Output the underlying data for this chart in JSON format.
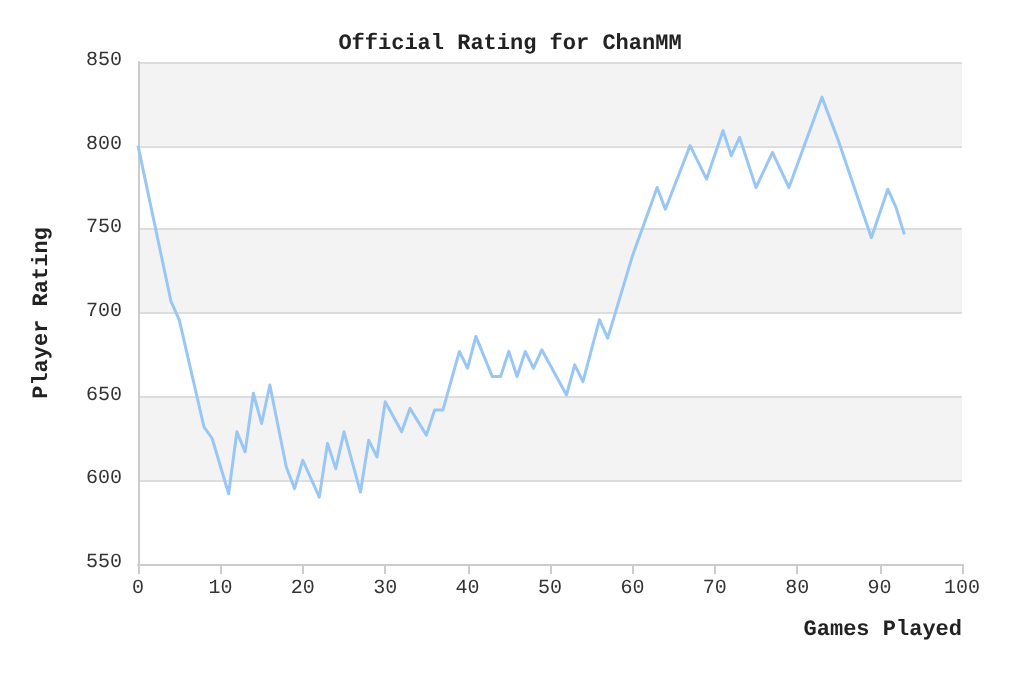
{
  "chart_data": {
    "type": "line",
    "title": "Official Rating for ChanMM",
    "xlabel": "Games Played",
    "ylabel": "Player Rating",
    "x": [
      0,
      4,
      5,
      8,
      9,
      11,
      12,
      13,
      14,
      15,
      16,
      18,
      19,
      20,
      22,
      23,
      24,
      25,
      27,
      28,
      29,
      30,
      32,
      33,
      35,
      36,
      37,
      39,
      40,
      41,
      43,
      44,
      45,
      46,
      47,
      48,
      49,
      52,
      53,
      54,
      56,
      57,
      60,
      63,
      64,
      67,
      69,
      71,
      72,
      73,
      75,
      77,
      79,
      83,
      85,
      89,
      91,
      92,
      93
    ],
    "series": [
      {
        "color": "#99c7f5",
        "values": [
          800,
          707,
          696,
          632,
          625,
          592,
          629,
          617,
          652,
          634,
          657,
          608,
          595,
          612,
          590,
          622,
          607,
          629,
          593,
          624,
          614,
          647,
          629,
          643,
          627,
          642,
          642,
          677,
          667,
          686,
          662,
          662,
          677,
          662,
          677,
          667,
          678,
          651,
          669,
          659,
          696,
          685,
          734,
          775,
          762,
          800,
          780,
          809,
          794,
          805,
          775,
          796,
          775,
          829,
          803,
          745,
          774,
          763,
          747
        ]
      }
    ],
    "xlim": [
      0,
      100
    ],
    "xticks": [
      0,
      10,
      20,
      30,
      40,
      50,
      60,
      70,
      80,
      90,
      100
    ],
    "ylim": [
      550,
      850
    ],
    "yticks": [
      550,
      600,
      650,
      700,
      750,
      800,
      850
    ],
    "grid": "y",
    "marker": "none",
    "line_style": "solid"
  }
}
